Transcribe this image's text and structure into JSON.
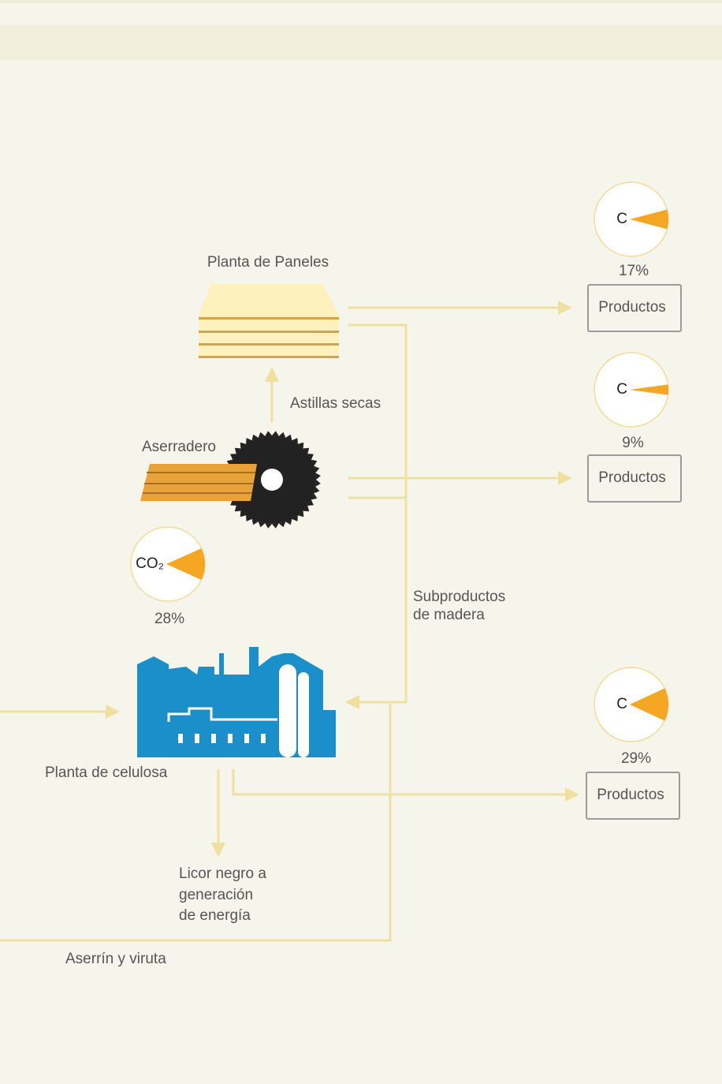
{
  "labels": {
    "panel_plant": "Planta de Paneles",
    "dry_chips": "Astillas secas",
    "sawmill": "Aserradero",
    "byproducts": [
      "Subproductos",
      "de madera"
    ],
    "pulp_mill": "Planta de celulosa",
    "black_liquor": [
      "Licor negro a",
      "generación",
      "de energía"
    ],
    "sawdust": "Aserrín y viruta"
  },
  "gauges": [
    {
      "symbol": "C",
      "value": 17,
      "value_label": "17%",
      "product": "Productos"
    },
    {
      "symbol": "C",
      "value": 9,
      "value_label": "9%",
      "product": "Productos"
    },
    {
      "symbol": "C",
      "value": 29,
      "value_label": "29%",
      "product": "Productos"
    },
    {
      "symbol": "CO₂",
      "value": 28,
      "value_label": "28%"
    }
  ]
}
